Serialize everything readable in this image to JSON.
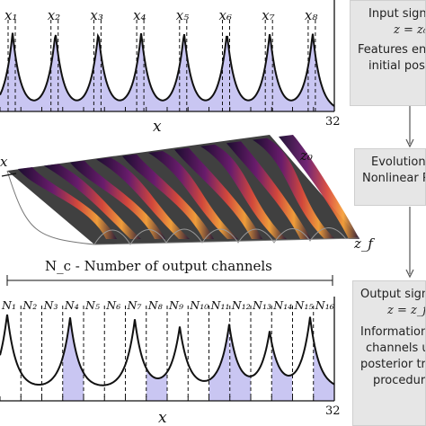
{
  "top_panel": {
    "peak_labels": [
      "x₁",
      "x₂",
      "x₃",
      "x₄",
      "x₅",
      "x₆",
      "x₇",
      "x₈"
    ],
    "x_axis_label": "x",
    "x_max_tick": "32"
  },
  "middle_panel": {
    "left_label": "x",
    "z_start_label": "z₀",
    "z_end_label": "z_f"
  },
  "bottom_panel": {
    "header": "N_c - Number of output channels",
    "channel_labels": [
      "N₁",
      "N₂",
      "N₃",
      "N₄",
      "N₅",
      "N₆",
      "N₇",
      "N₈",
      "N₉",
      "N₁₀",
      "N₁₁",
      "N₁₂",
      "N₁₃",
      "N₁₄",
      "N₁₅",
      "N₁₆"
    ],
    "x_axis_label": "x",
    "x_max_tick": "32"
  },
  "side_boxes": {
    "input": [
      "Input signal",
      "z = z₀",
      "Features encoded in",
      "initial positions"
    ],
    "evolution": [
      "Evolution via",
      "Nonlinear Response"
    ],
    "output": [
      "Output signal",
      "z = z_f",
      "Information from",
      "channels used for",
      "posterior training",
      "procedure"
    ]
  },
  "colors": {
    "fill": "#c9c6f2",
    "line": "#111111",
    "box_bg": "#e6e6e6",
    "arrow": "#555555"
  }
}
